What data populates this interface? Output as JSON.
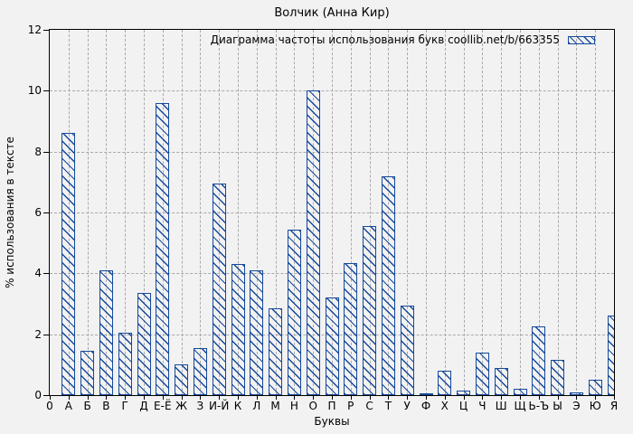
{
  "window": {
    "background": "#f2f2f2"
  },
  "colors": {
    "bar_blue": "#15499c",
    "grid_gray": "#a9a9a9",
    "axis_black": "#000000"
  },
  "chart_data": {
    "type": "bar",
    "title": "Волчик (Анна Кир)",
    "legend": "Диаграмма частоты использования букв coollib.net/b/663355",
    "xlabel": "Буквы",
    "ylabel": "% использования в тексте",
    "ylim": [
      0,
      12
    ],
    "yticks": [
      0,
      2,
      4,
      6,
      8,
      10,
      12
    ],
    "grid": true,
    "legend_position": "top-right-inside",
    "bar_style": "diagonal-hatch",
    "categories": [
      "0",
      "А",
      "Б",
      "В",
      "Г",
      "Д",
      "Е-Ё",
      "Ж",
      "З",
      "И-Й",
      "К",
      "Л",
      "М",
      "Н",
      "О",
      "П",
      "Р",
      "С",
      "Т",
      "У",
      "Ф",
      "Х",
      "Ц",
      "Ч",
      "Ш",
      "Щ",
      "Ь-Ъ",
      "Ы",
      "Э",
      "Ю",
      "Я"
    ],
    "values": [
      0,
      8.6,
      1.45,
      4.1,
      2.05,
      3.35,
      9.6,
      1.0,
      1.55,
      6.95,
      4.3,
      4.1,
      2.85,
      5.45,
      10.0,
      3.2,
      4.35,
      5.55,
      7.2,
      2.95,
      0.05,
      0.8,
      0.15,
      1.4,
      0.9,
      0.2,
      2.25,
      1.15,
      0.1,
      0.5,
      2.6
    ]
  }
}
